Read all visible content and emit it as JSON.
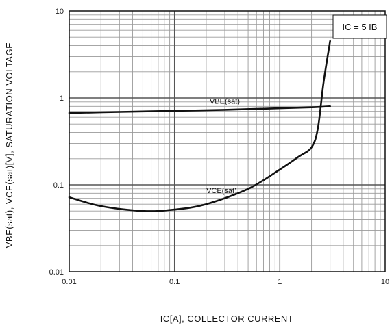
{
  "chart_data": {
    "type": "line",
    "x_scale": "log",
    "y_scale": "log",
    "xlim": [
      0.01,
      10
    ],
    "ylim": [
      0.01,
      10
    ],
    "x_ticks": [
      "0.01",
      "0.1",
      "1",
      "10"
    ],
    "y_ticks": [
      "0.01",
      "0.1",
      "1",
      "10"
    ],
    "xlabel": "IC[A], COLLECTOR CURRENT",
    "ylabel": "VBE(sat), VCE(sat)[V], SATURATION VOLTAGE",
    "condition": "IC = 5 IB",
    "grid": true,
    "series": [
      {
        "name": "VBE(sat)",
        "x": [
          0.01,
          0.03,
          0.1,
          0.3,
          1,
          2,
          3
        ],
        "y": [
          0.67,
          0.69,
          0.71,
          0.73,
          0.76,
          0.78,
          0.8
        ]
      },
      {
        "name": "VCE(sat)",
        "x": [
          0.01,
          0.02,
          0.05,
          0.1,
          0.2,
          0.5,
          1,
          1.5,
          2,
          2.3,
          2.6,
          3
        ],
        "y": [
          0.072,
          0.057,
          0.05,
          0.052,
          0.06,
          0.09,
          0.15,
          0.21,
          0.27,
          0.45,
          1.5,
          4.5
        ]
      }
    ]
  }
}
